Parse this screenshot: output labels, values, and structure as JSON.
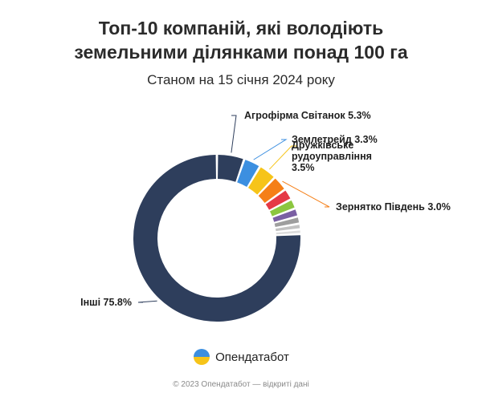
{
  "header": {
    "title_line1": "Топ-10 компаній, які володіють",
    "title_line2": "земельними ділянками понад 100 га",
    "subtitle": "Станом на 15 січня 2024 року"
  },
  "chart_data": {
    "type": "pie",
    "style": "donut",
    "title": "Топ-10 компаній, які володіють земельними ділянками понад 100 га",
    "subtitle": "Станом на 15 січня 2024 року",
    "unit": "%",
    "slices": [
      {
        "label": "Агрофірма Світанок",
        "value": 5.3,
        "color": "#2e3e5c",
        "shown_label": "Агрофірма Світанок 5.3%",
        "label_color": "#2e3e5c"
      },
      {
        "label": "Землетрейд",
        "value": 3.3,
        "color": "#3c8fe0",
        "shown_label": "Землетрейд 3.3%",
        "label_color": "#3c8fe0"
      },
      {
        "label": "Дружківське рудоуправління",
        "value": 3.5,
        "color": "#f6c419",
        "shown_label": "Дружківське рудоуправління 3.5%",
        "label_color": "#f6c419"
      },
      {
        "label": "Зернятко Південь",
        "value": 3.0,
        "color": "#f57f17",
        "shown_label": "Зернятко Південь 3.0%",
        "label_color": "#f57f17"
      },
      {
        "label": "",
        "value": 2.2,
        "color": "#e53946",
        "shown_label": ""
      },
      {
        "label": "",
        "value": 1.9,
        "color": "#8cc63f",
        "shown_label": ""
      },
      {
        "label": "",
        "value": 1.6,
        "color": "#7a5fa3",
        "shown_label": ""
      },
      {
        "label": "",
        "value": 1.4,
        "color": "#9e9e9e",
        "shown_label": ""
      },
      {
        "label": "",
        "value": 1.1,
        "color": "#c2c2c2",
        "shown_label": ""
      },
      {
        "label": "",
        "value": 0.9,
        "color": "#dcdcdc",
        "shown_label": ""
      },
      {
        "label": "Інші",
        "value": 75.8,
        "color": "#2e3e5c",
        "shown_label": "Інші 75.8%",
        "label_color": "#2e3e5c"
      }
    ],
    "legend": "none"
  },
  "brand": {
    "name": "Опендатабот",
    "logo_colors": [
      "#3c8fe0",
      "#f6c419"
    ]
  },
  "footer": {
    "text": "© 2023 Опендатабот — відкриті дані"
  }
}
